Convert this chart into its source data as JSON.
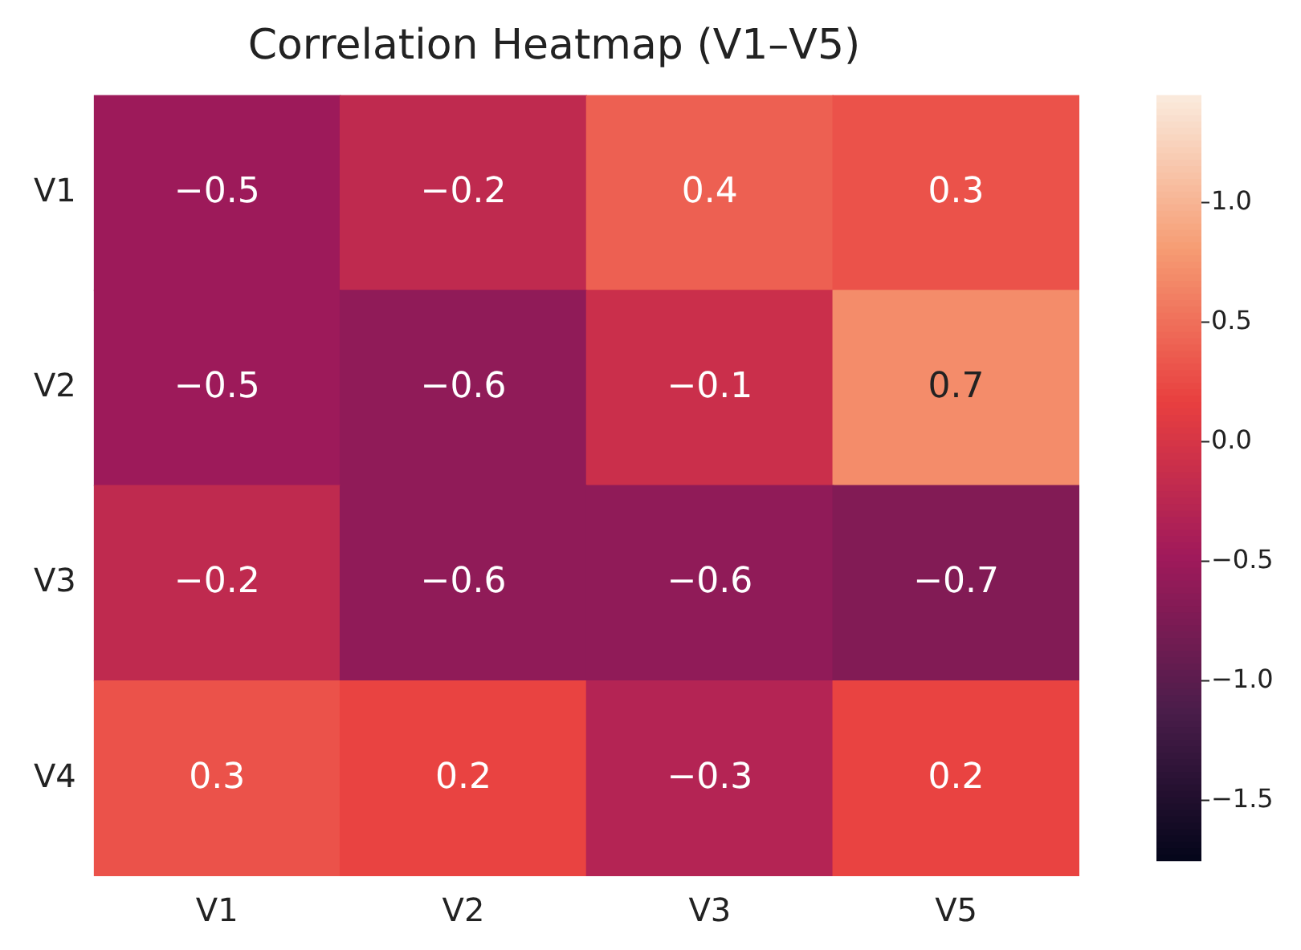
{
  "chart_data": {
    "type": "heatmap",
    "title": "Correlation Heatmap (V1–V5)",
    "categories": [
      "V1",
      "V2",
      "V3",
      "V5"
    ],
    "y_categories": [
      "V1",
      "V2",
      "V3",
      "V4"
    ],
    "cells": [
      [
        -0.5,
        -0.2,
        0.4,
        0.3
      ],
      [
        -0.5,
        -0.6,
        -0.1,
        0.7
      ],
      [
        -0.2,
        -0.6,
        -0.6,
        -0.7
      ],
      [
        0.3,
        0.2,
        -0.3,
        0.2
      ]
    ],
    "cell_labels": [
      [
        "−0.5",
        "−0.2",
        "0.4",
        "0.3"
      ],
      [
        "−0.5",
        "−0.6",
        "−0.1",
        "0.7"
      ],
      [
        "−0.2",
        "−0.6",
        "−0.6",
        "−0.7"
      ],
      [
        "0.3",
        "0.2",
        "−0.3",
        "0.2"
      ]
    ],
    "data_labels": true,
    "clim": [
      -1.75,
      1.45
    ],
    "cticks": [
      {
        "value": 1,
        "label": "1.0"
      },
      {
        "value": 0.5,
        "label": "0.5"
      },
      {
        "value": 0,
        "label": "0.0"
      },
      {
        "value": -0.5,
        "label": "−0.5"
      },
      {
        "value": -1,
        "label": "−1.0"
      },
      {
        "value": -1.5,
        "label": "−1.5"
      }
    ]
  }
}
